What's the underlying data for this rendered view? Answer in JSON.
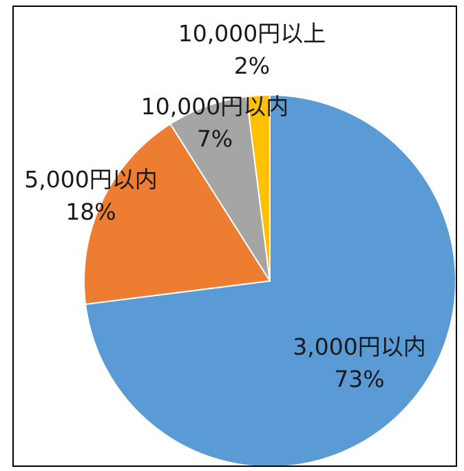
{
  "chart_data": {
    "type": "pie",
    "title": "",
    "start": "top",
    "direction": "clockwise",
    "legend": "none",
    "slices": [
      {
        "label": "3,000円以内",
        "value": 73,
        "value_label": "73%",
        "color": "#5b9bd5"
      },
      {
        "label": "5,000円以内",
        "value": 18,
        "value_label": "18%",
        "color": "#ed7d31"
      },
      {
        "label": "10,000円以内",
        "value": 7,
        "value_label": "7%",
        "color": "#a5a5a5"
      },
      {
        "label": "10,000円以上",
        "value": 2,
        "value_label": "2%",
        "color": "#ffc000"
      }
    ]
  }
}
